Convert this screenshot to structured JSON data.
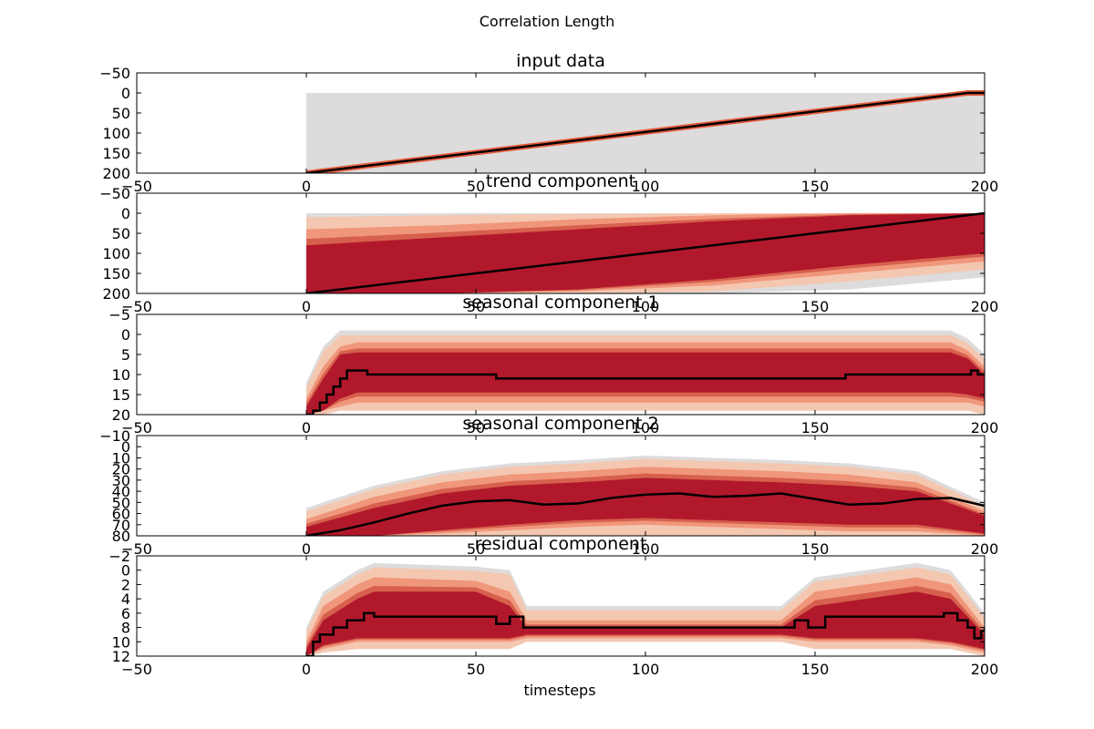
{
  "figure": {
    "suptitle": "Correlation Length",
    "xlabel": "timesteps"
  },
  "colors": {
    "background": "#dddbdb",
    "band_1": "#f4c7b0",
    "band_2": "#f0967b",
    "band_3": "#d6604d",
    "band_core": "#b2182b",
    "median_line": "#000000",
    "input_trend_line": "#e65b3d"
  },
  "chart_data": [
    {
      "type": "area",
      "title": "input data",
      "xlim": [
        -50,
        200
      ],
      "ylim": [
        200,
        -50
      ],
      "x_ticks": [
        "−50",
        "0",
        "50",
        "100",
        "150",
        "200"
      ],
      "y_ticks": [
        "−50",
        "0",
        "50",
        "100",
        "150",
        "200"
      ],
      "region_start": 0,
      "median": {
        "x": [
          0,
          195,
          200
        ],
        "y": [
          200,
          0,
          0
        ]
      },
      "bands": {
        "x": [
          0,
          200
        ],
        "top": [
          0,
          0
        ],
        "bottom": [
          200,
          200
        ]
      }
    },
    {
      "type": "area",
      "title": "trend component",
      "xlim": [
        -50,
        200
      ],
      "ylim": [
        200,
        -50
      ],
      "x_ticks": [
        "−50",
        "0",
        "50",
        "100",
        "150",
        "200"
      ],
      "y_ticks": [
        "−50",
        "0",
        "50",
        "100",
        "150",
        "200"
      ],
      "region_start": 0,
      "median": {
        "x": [
          0,
          200
        ],
        "y": [
          200,
          0
        ]
      },
      "bands": {
        "x": [
          0,
          40,
          80,
          120,
          160,
          200
        ],
        "outer_top": [
          0,
          0,
          0,
          0,
          0,
          0
        ],
        "outer_bottom": [
          200,
          200,
          200,
          200,
          190,
          160
        ],
        "mid_top": [
          10,
          5,
          2,
          0,
          0,
          0
        ],
        "mid_bottom": [
          200,
          200,
          200,
          195,
          170,
          140
        ],
        "inner_top": [
          40,
          30,
          15,
          5,
          0,
          0
        ],
        "inner_bottom": [
          200,
          200,
          195,
          180,
          150,
          120
        ],
        "core_top": [
          80,
          60,
          40,
          20,
          5,
          0
        ],
        "core_bottom": [
          200,
          200,
          190,
          165,
          130,
          100
        ]
      }
    },
    {
      "type": "area",
      "title": "seasonal component 1",
      "xlim": [
        -50,
        200
      ],
      "ylim": [
        20,
        -5
      ],
      "x_ticks": [
        "−50",
        "0",
        "50",
        "100",
        "150",
        "200"
      ],
      "y_ticks": [
        "−5",
        "0",
        "5",
        "10",
        "15",
        "20"
      ],
      "region_start": 0,
      "median": {
        "x": [
          0,
          2,
          4,
          6,
          8,
          10,
          12,
          18,
          50,
          56,
          153,
          159,
          190,
          196,
          198,
          200
        ],
        "y": [
          20,
          19,
          17,
          15,
          13,
          11,
          9,
          10,
          10,
          11,
          11,
          10,
          10,
          9,
          10,
          10
        ]
      },
      "bands": {
        "x": [
          0,
          5,
          10,
          15,
          50,
          100,
          150,
          190,
          195,
          200
        ],
        "outer_top": [
          12,
          3,
          -1,
          -1,
          -1,
          -1,
          -1,
          -1,
          1,
          5
        ],
        "outer_bottom": [
          20,
          20,
          19,
          19,
          19,
          19,
          19,
          19,
          19,
          20
        ],
        "inner_top": [
          16,
          8,
          3,
          2,
          2,
          2,
          2,
          2,
          4,
          8
        ],
        "inner_bottom": [
          20,
          19,
          18,
          17,
          17,
          17,
          17,
          17,
          17,
          18
        ],
        "core_top": [
          18,
          11,
          5,
          4.5,
          4.5,
          4.5,
          4.5,
          4.5,
          6,
          10
        ],
        "core_bottom": [
          20,
          19,
          16,
          14.5,
          14.5,
          14.5,
          14.5,
          14.5,
          15,
          16
        ]
      }
    },
    {
      "type": "area",
      "title": "seasonal component 2",
      "xlim": [
        -50,
        200
      ],
      "ylim": [
        80,
        -10
      ],
      "x_ticks": [
        "−50",
        "0",
        "50",
        "100",
        "150",
        "200"
      ],
      "y_ticks": [
        "−10",
        "0",
        "10",
        "20",
        "30",
        "40",
        "50",
        "60",
        "70",
        "80"
      ],
      "region_start": 0,
      "median": {
        "x": [
          0,
          10,
          20,
          30,
          40,
          50,
          60,
          70,
          80,
          90,
          100,
          110,
          120,
          130,
          140,
          150,
          160,
          170,
          180,
          190,
          200
        ],
        "y": [
          80,
          75,
          68,
          60,
          53,
          49,
          48,
          52,
          51,
          46,
          43,
          42,
          45,
          44,
          42,
          47,
          52,
          51,
          47,
          46,
          53
        ]
      },
      "bands": {
        "x": [
          0,
          20,
          40,
          60,
          80,
          100,
          120,
          140,
          160,
          180,
          200
        ],
        "outer_top": [
          55,
          35,
          22,
          15,
          12,
          8,
          10,
          12,
          15,
          22,
          50
        ],
        "outer_bottom": [
          80,
          80,
          80,
          80,
          80,
          80,
          80,
          80,
          80,
          80,
          80
        ],
        "inner_top": [
          65,
          45,
          32,
          25,
          22,
          18,
          20,
          22,
          25,
          32,
          58
        ],
        "inner_bottom": [
          80,
          80,
          78,
          75,
          72,
          70,
          72,
          74,
          76,
          76,
          80
        ],
        "core_top": [
          72,
          55,
          42,
          35,
          32,
          28,
          30,
          32,
          35,
          40,
          62
        ],
        "core_bottom": [
          80,
          80,
          75,
          70,
          66,
          64,
          66,
          68,
          70,
          70,
          78
        ]
      }
    },
    {
      "type": "area",
      "title": "residual component",
      "xlim": [
        -50,
        200
      ],
      "ylim": [
        12,
        -2
      ],
      "x_ticks": [
        "−50",
        "0",
        "50",
        "100",
        "150",
        "200"
      ],
      "y_ticks": [
        "−2",
        "0",
        "2",
        "4",
        "6",
        "8",
        "10",
        "12"
      ],
      "region_start": 0,
      "median": {
        "x": [
          0,
          2,
          4,
          8,
          12,
          17,
          20,
          50,
          56,
          60,
          64,
          140,
          144,
          148,
          153,
          185,
          188,
          192,
          195,
          197,
          199,
          200
        ],
        "y": [
          12,
          10,
          9,
          8,
          7,
          6,
          6.5,
          6.5,
          7.5,
          6.5,
          8,
          8,
          7,
          8,
          6.5,
          6.5,
          6,
          7,
          8,
          9.5,
          8.5,
          8
        ]
      },
      "bands": {
        "x": [
          0,
          5,
          15,
          20,
          50,
          60,
          65,
          140,
          150,
          180,
          190,
          200
        ],
        "outer_top": [
          8,
          3,
          0,
          -1,
          -0.5,
          0,
          5,
          5,
          1,
          -1,
          0,
          6
        ],
        "outer_bottom": [
          12,
          11.5,
          11,
          11,
          11,
          11,
          10,
          10,
          11,
          11,
          11,
          12
        ],
        "inner_top": [
          10,
          5,
          2,
          1,
          1.5,
          3,
          7,
          7,
          3,
          1,
          2,
          8
        ],
        "inner_bottom": [
          12,
          11,
          10,
          10,
          10,
          10,
          9.5,
          9.5,
          10,
          10,
          10.5,
          11.5
        ],
        "core_top": [
          11,
          7,
          4,
          3,
          3,
          5,
          8,
          8,
          5,
          3,
          4,
          9
        ],
        "core_bottom": [
          12,
          10.5,
          9.5,
          9.5,
          9.5,
          9.5,
          9,
          9,
          9.5,
          9.5,
          10,
          11
        ]
      }
    }
  ]
}
